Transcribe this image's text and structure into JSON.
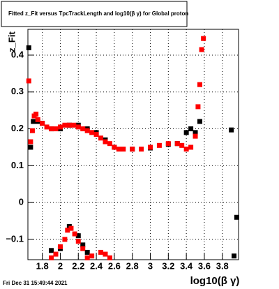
{
  "chart_data": {
    "type": "scatter",
    "title": "Fitted z_Fit versus TpcTrackLength and log10(β γ) for Global proton",
    "x_label": "log10(β γ)",
    "y_label": "z_Fit",
    "timestamp": "Fri Dec 31 15:49:44 2021",
    "xlim": [
      1.64,
      3.98
    ],
    "ylim": [
      -0.155,
      0.47
    ],
    "xticks": [
      1.8,
      2,
      2.2,
      2.4,
      2.6,
      2.8,
      3,
      3.2,
      3.4,
      3.6,
      3.8
    ],
    "yticks": [
      {
        "value": -0.1,
        "label": "−0.1"
      },
      0,
      0.1,
      0.2,
      0.3,
      0.4
    ],
    "grid": true,
    "series": [
      {
        "name": "black",
        "color": "#000000",
        "x": [
          1.65,
          1.67,
          1.7,
          1.75,
          1.8,
          1.9,
          2.0,
          2.1,
          2.2,
          2.3,
          2.4,
          2.5,
          2.6,
          2.8,
          3.0,
          3.2,
          3.3,
          3.4,
          3.45,
          3.5,
          3.55,
          3.9,
          3.96,
          3.93,
          1.9,
          2.0,
          2.1,
          2.2,
          2.25,
          2.3
        ],
        "y": [
          0.42,
          0.15,
          0.22,
          0.22,
          0.215,
          0.2,
          0.2,
          0.21,
          0.21,
          0.2,
          0.19,
          0.17,
          0.15,
          0.145,
          0.148,
          0.158,
          0.16,
          0.19,
          0.2,
          0.19,
          0.22,
          0.197,
          -0.04,
          -0.145,
          -0.13,
          -0.125,
          -0.065,
          -0.09,
          -0.115,
          -0.135
        ]
      },
      {
        "name": "red",
        "color": "#ff0000",
        "x": [
          1.65,
          1.67,
          1.69,
          1.71,
          1.73,
          1.75,
          1.8,
          1.85,
          1.9,
          1.95,
          2.0,
          2.05,
          2.1,
          2.15,
          2.2,
          2.25,
          2.3,
          2.35,
          2.4,
          2.45,
          2.5,
          2.55,
          2.6,
          2.65,
          2.7,
          2.8,
          2.9,
          3.0,
          3.1,
          3.2,
          3.3,
          3.35,
          3.4,
          3.45,
          3.5,
          3.53,
          3.55,
          3.57,
          3.59,
          1.9,
          1.95,
          2.0,
          2.05,
          2.08,
          2.12,
          2.16,
          2.2,
          2.25,
          2.3,
          2.35,
          2.45,
          2.5,
          2.55
        ],
        "y": [
          0.33,
          0.165,
          0.195,
          0.235,
          0.24,
          0.225,
          0.215,
          0.205,
          0.2,
          0.2,
          0.205,
          0.21,
          0.21,
          0.21,
          0.205,
          0.2,
          0.195,
          0.19,
          0.185,
          0.175,
          0.165,
          0.16,
          0.15,
          0.145,
          0.145,
          0.145,
          0.145,
          0.15,
          0.155,
          0.16,
          0.16,
          0.155,
          0.145,
          0.15,
          0.18,
          0.26,
          0.32,
          0.415,
          0.445,
          -0.15,
          -0.14,
          -0.12,
          -0.1,
          -0.075,
          -0.07,
          -0.085,
          -0.105,
          -0.125,
          -0.15,
          -0.145,
          -0.135,
          -0.14,
          -0.15
        ]
      }
    ]
  }
}
